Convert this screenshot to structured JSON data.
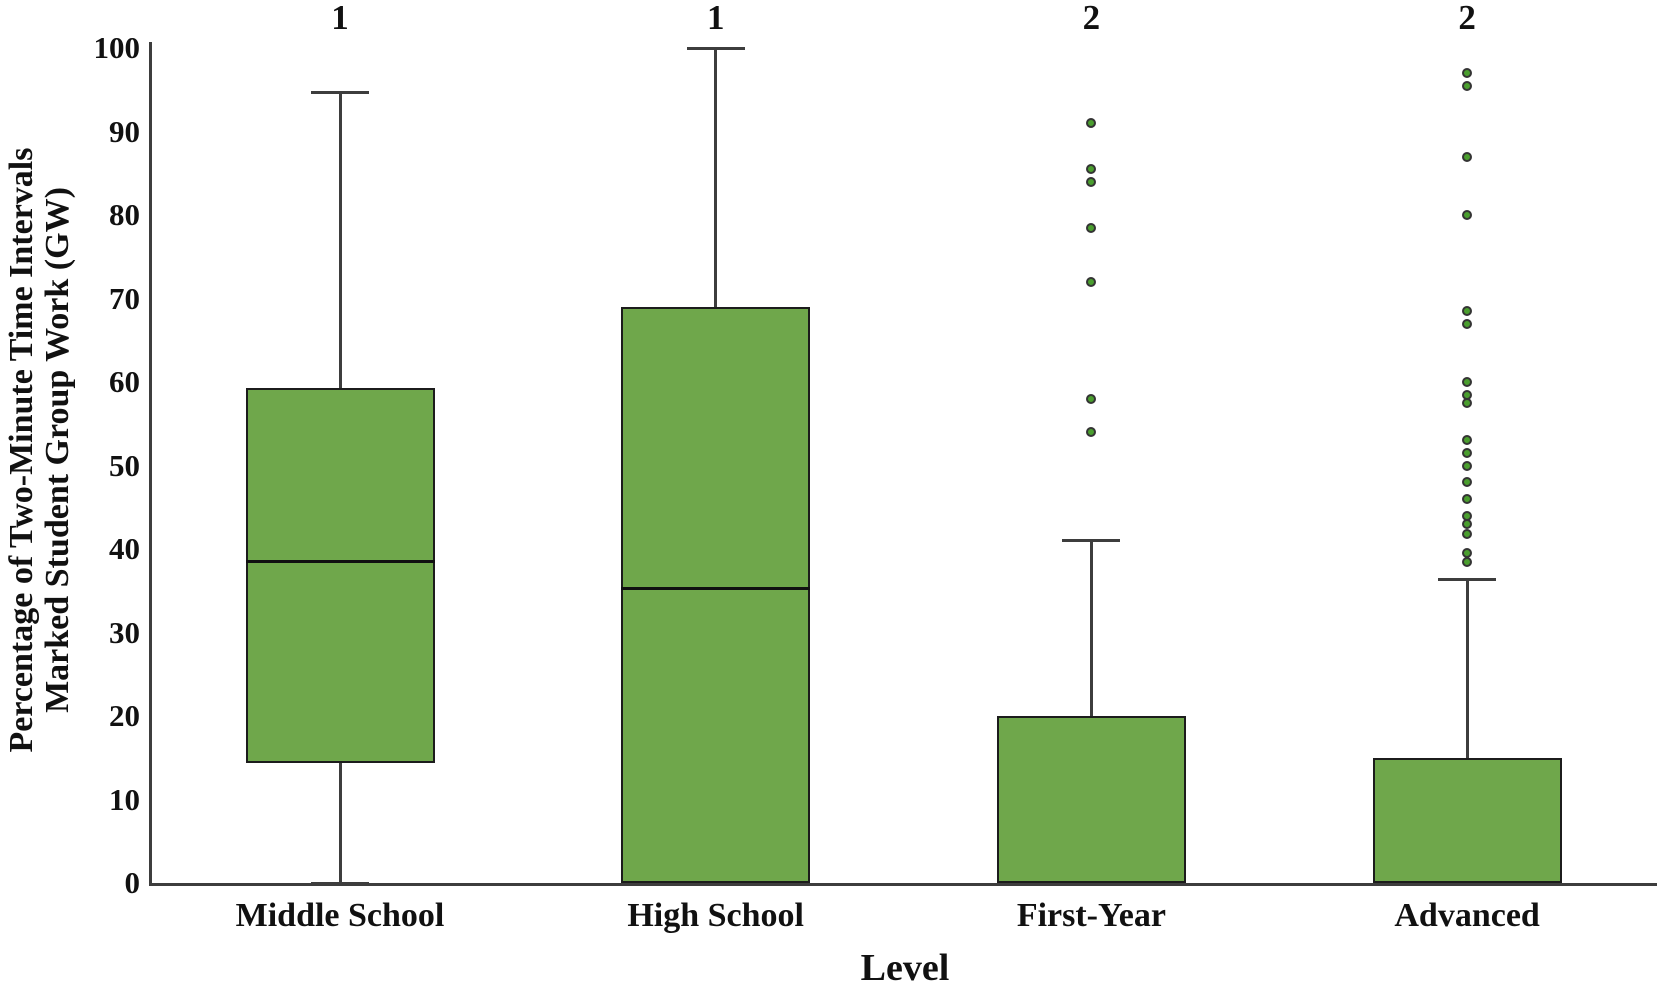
{
  "chart_data": {
    "type": "boxplot",
    "title": "",
    "xlabel": "Level",
    "ylabel_lines": [
      "Percentage of Two-Minute Time Intervals",
      "Marked Student Group Work (GW)"
    ],
    "ylim": [
      0,
      100
    ],
    "yticks": [
      100,
      90,
      80,
      70,
      60,
      50,
      40,
      30,
      20,
      10,
      0
    ],
    "grid": "off",
    "categories": [
      "Middle School",
      "High School",
      "First-Year",
      "Advanced"
    ],
    "group_labels": [
      "1",
      "1",
      "2",
      "2"
    ],
    "series": [
      {
        "label": "Middle School",
        "group_label": "1",
        "whisker_low": 0,
        "q1": 14.4,
        "median": 38.5,
        "q3": 59.3,
        "whisker_high": 94.7,
        "outliers": []
      },
      {
        "label": "High School",
        "group_label": "1",
        "whisker_low": 0,
        "q1": 0,
        "median": 35.3,
        "q3": 69,
        "whisker_high": 100,
        "outliers": []
      },
      {
        "label": "First-Year",
        "group_label": "2",
        "whisker_low": 0,
        "q1": 0,
        "median": 0,
        "q3": 20,
        "whisker_high": 41,
        "outliers": [
          54,
          58,
          72,
          78.5,
          84,
          85.5,
          91
        ]
      },
      {
        "label": "Advanced",
        "group_label": "2",
        "whisker_low": 0,
        "q1": 0,
        "median": 0,
        "q3": 15,
        "whisker_high": 36.3,
        "outliers": [
          38.5,
          39.5,
          41.8,
          43,
          44,
          46,
          48,
          50,
          51.5,
          53,
          57.5,
          58.5,
          60,
          67,
          68.5,
          80,
          87,
          95.5,
          97
        ]
      }
    ],
    "colors": {
      "box_fill": "#6fa74b",
      "box_border": "#1c1c1c",
      "median": "#111111",
      "whisker": "#3d3d3d",
      "axis": "#3d3d3d",
      "outlier_ring": "#343434",
      "outlier_fill": "#4a9e2e",
      "text": "#111111"
    }
  }
}
